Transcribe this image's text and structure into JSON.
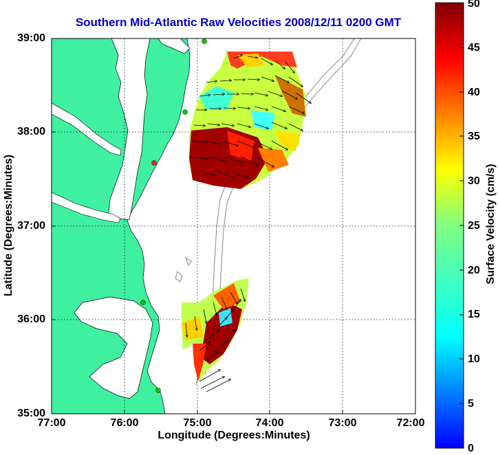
{
  "title": "Southern Mid-Atlantic Raw Velocities 2008/12/11 0200 GMT",
  "x_axis": {
    "label": "Longitude (Degrees:Minutes)",
    "ticks": [
      "77:00",
      "76:00",
      "75:00",
      "74:00",
      "73:00",
      "72:00"
    ]
  },
  "y_axis": {
    "label": "Latitude (Degrees:Minutes)",
    "ticks": [
      "39:00",
      "38:00",
      "37:00",
      "36:00",
      "35:00"
    ]
  },
  "colorbar": {
    "label": "Surface Velocity (cm/s)",
    "ticks": [
      "0",
      "5",
      "10",
      "15",
      "20",
      "25",
      "30",
      "35",
      "40",
      "45",
      "50"
    ],
    "min": 0,
    "max": 50,
    "colormap": "jet"
  },
  "map": {
    "extent": {
      "lon_min": -77,
      "lon_max": -72,
      "lat_min": 35,
      "lat_max": 39
    },
    "land_color": "#3ef0a0",
    "grid": "dotted",
    "stations": [
      {
        "lon": -74.9,
        "lat": 39.03,
        "color": "#00cc00"
      },
      {
        "lon": -75.15,
        "lat": 38.22,
        "color": "#00cc00"
      },
      {
        "lon": -75.57,
        "lat": 37.7,
        "color": "#ee2222"
      },
      {
        "lon": -75.72,
        "lat": 36.2,
        "color": "#00cc00"
      },
      {
        "lon": -75.55,
        "lat": 35.25,
        "color": "#00cc00"
      }
    ]
  }
}
